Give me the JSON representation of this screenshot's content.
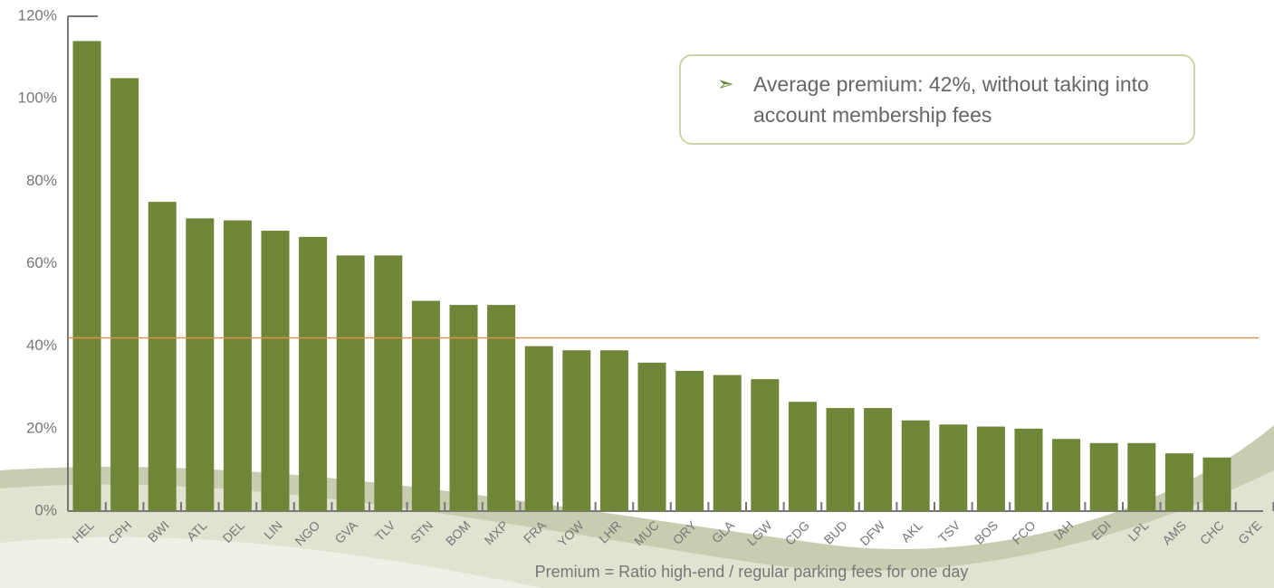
{
  "chart_data": {
    "type": "bar",
    "categories": [
      "HEL",
      "CPH",
      "BWI",
      "ATL",
      "DEL",
      "LIN",
      "NGO",
      "GVA",
      "TLV",
      "STN",
      "BOM",
      "MXP",
      "FRA",
      "YOW",
      "LHR",
      "MUC",
      "ORY",
      "GLA",
      "LGW",
      "CDG",
      "BUD",
      "DFW",
      "AKL",
      "TSV",
      "BOS",
      "FCO",
      "IAH",
      "EDI",
      "LPL",
      "AMS",
      "CHC",
      "GYE"
    ],
    "values": [
      114,
      105,
      75,
      71,
      70.5,
      68,
      66.5,
      62,
      62,
      51,
      50,
      50,
      40,
      39,
      39,
      36,
      34,
      33,
      32,
      26.5,
      25,
      25,
      22,
      21,
      20.5,
      20,
      17.5,
      16.5,
      16.5,
      14,
      13,
      null
    ],
    "color": "#6f8638",
    "ylim": [
      0,
      120
    ],
    "yticks": [
      {
        "value": 0,
        "label": "0%"
      },
      {
        "value": 20,
        "label": "20%"
      },
      {
        "value": 40,
        "label": "40%"
      },
      {
        "value": 60,
        "label": "60%"
      },
      {
        "value": 80,
        "label": "80%"
      },
      {
        "value": 100,
        "label": "100%"
      },
      {
        "value": 120,
        "label": "120%"
      }
    ],
    "reference_line": {
      "value": 42,
      "color": "#d9924f"
    },
    "xlabel": "Premium = Ratio high-end  / regular parking fees for one day",
    "annotation": "Average premium: 42%, without taking into account membership fees"
  }
}
